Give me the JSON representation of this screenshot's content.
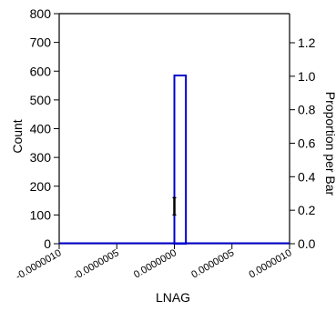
{
  "chart_data": {
    "type": "bar",
    "xlabel": "LNAG",
    "ylabel_left": "Count",
    "ylabel_right": "Proportion per Bar",
    "x_ticks": [
      "-0.0000010",
      "-0.0000005",
      "0.0000000",
      "0.0000005",
      "0.0000010"
    ],
    "x_tick_values": [
      -1e-06,
      -5e-07,
      0,
      5e-07,
      1e-06
    ],
    "xlim": [
      -1e-06,
      1e-06
    ],
    "y_left_ticks": [
      "0",
      "100",
      "200",
      "300",
      "400",
      "500",
      "600",
      "700",
      "800"
    ],
    "y_left_tick_values": [
      0,
      100,
      200,
      300,
      400,
      500,
      600,
      700,
      800
    ],
    "ylim_left": [
      0,
      800
    ],
    "y_right_ticks": [
      "0.0",
      "0.2",
      "0.4",
      "0.6",
      "0.8",
      "1.0",
      "1.2"
    ],
    "y_right_tick_values": [
      0,
      0.2,
      0.4,
      0.6,
      0.8,
      1.0,
      1.2
    ],
    "bars": [
      {
        "x_start": 0,
        "x_end": 1e-07,
        "count": 585
      }
    ],
    "bar_color": "#0000cc",
    "marker": {
      "x": 0,
      "y_low": 100,
      "y_high": 160
    },
    "grid": false
  }
}
